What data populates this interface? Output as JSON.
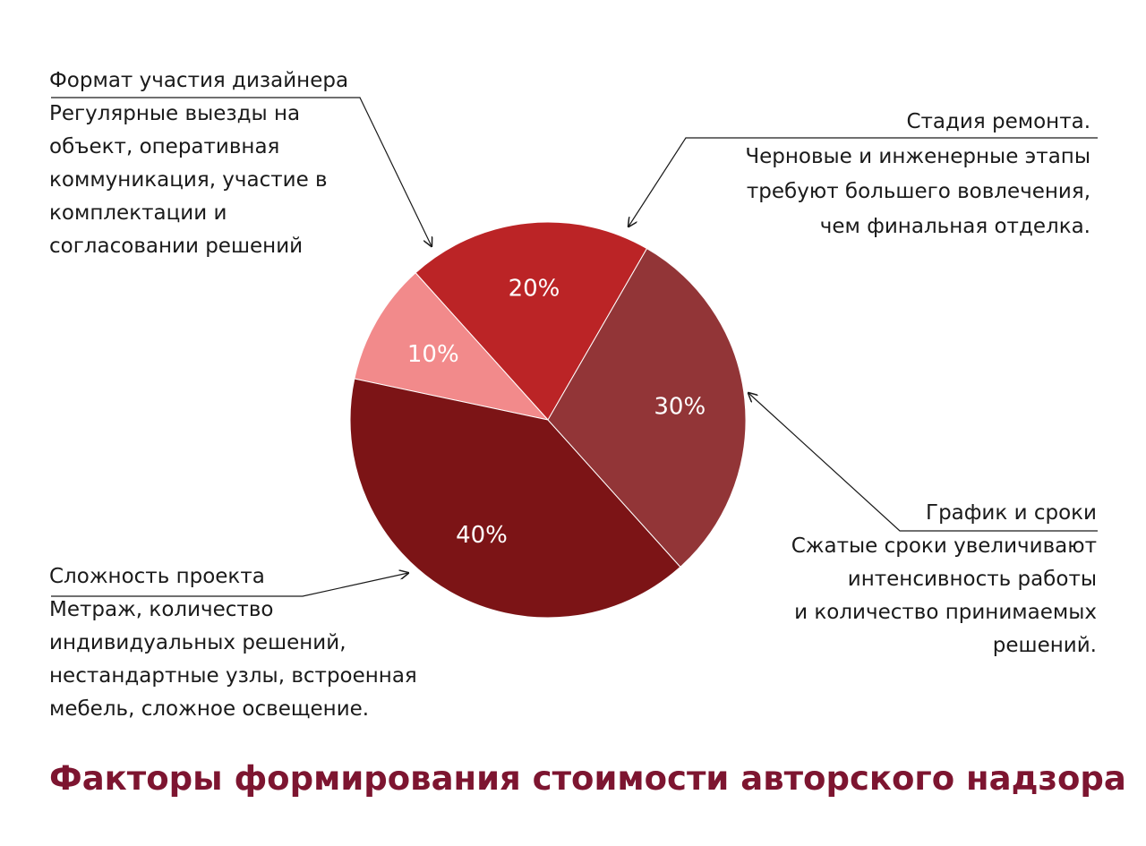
{
  "chart_data": {
    "type": "pie",
    "title": "Факторы формирования стоимости авторского надзора",
    "slices": [
      {
        "label": "Стадия ремонта",
        "value": 20,
        "value_label": "20%",
        "color": "#bb2426"
      },
      {
        "label": "График и сроки",
        "value": 10,
        "value_label": "10%",
        "color": "#f28a8b"
      },
      {
        "label": "Сложность проекта",
        "value": 40,
        "value_label": "40%",
        "color": "#7c1416"
      },
      {
        "label": "Формат участия дизайнера",
        "value": 30,
        "value_label": "30%",
        "color": "#923537"
      }
    ]
  },
  "callouts": {
    "format": {
      "head": "Формат участия дизайнера",
      "lines": [
        "Регулярные выезды на",
        "объект, оперативная",
        "коммуникация, участие в",
        "комплектации и",
        "согласовании решений"
      ]
    },
    "stage": {
      "head": "Стадия ремонта.",
      "lines": [
        "Черновые и инженерные этапы",
        "требуют большего вовлечения,",
        "чем финальная отделка."
      ]
    },
    "schedule": {
      "head": "График и сроки",
      "lines": [
        "Сжатые сроки увеличивают",
        "интенсивность работы",
        "и количество принимаемых",
        "решений."
      ]
    },
    "complexity": {
      "head": "Сложность проекта",
      "lines": [
        "Метраж, количество",
        "индивидуальных решений,",
        "нестандартные узлы, встроенная",
        "мебель, сложное освещение."
      ]
    }
  }
}
